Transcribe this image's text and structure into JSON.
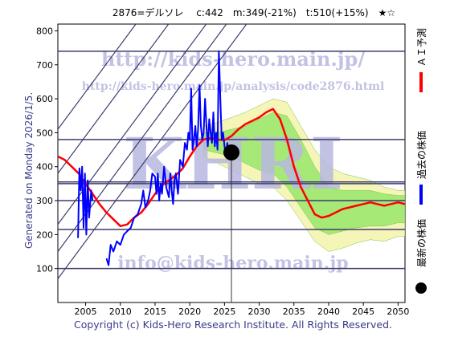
{
  "chart_data": {
    "type": "line",
    "title": "2876=デルソレ　 c:442　m:349(-21%)　t:510(+15%)　★☆",
    "generated_note": "Generated on Monday 2026/1/5.",
    "copyright": "Copyright (c) Kids-Hero Research Institute. All Rights Reserved.",
    "watermarks": [
      "http://kids-hero.main.jp/",
      "http://kids-hero.main.jp/analysis/code2876.html",
      "info@kids-hero.main.jp",
      "KHRI"
    ],
    "legend": [
      {
        "label": "ＡＩ予測",
        "color": "#ff0000"
      },
      {
        "label": "過去の株価",
        "color": "#0000ff"
      },
      {
        "label": "最新の株価",
        "color": "#000000"
      }
    ],
    "xlim": [
      2001.0,
      2051.0
    ],
    "ylim": [
      0,
      820
    ],
    "x_ticks": [
      2005,
      2010,
      2015,
      2020,
      2025,
      2030,
      2035,
      2040,
      2045,
      2050
    ],
    "y_ticks": [
      100,
      200,
      300,
      400,
      500,
      600,
      700,
      800
    ],
    "horizontal_lines": [
      100,
      215,
      300,
      350,
      355,
      480,
      740
    ],
    "diagonal_lines": [
      {
        "x1": 2001,
        "y1": 70,
        "x2": 2051,
        "y2": 1450
      },
      {
        "x1": 2001,
        "y1": 150,
        "x2": 2051,
        "y2": 1530
      },
      {
        "x1": 2001,
        "y1": 230,
        "x2": 2051,
        "y2": 1610
      },
      {
        "x1": 2001,
        "y1": 380,
        "x2": 2051,
        "y2": 1760
      },
      {
        "x1": 2001,
        "y1": 510,
        "x2": 2051,
        "y2": 1890
      }
    ],
    "latest_point": {
      "x": 2026.0,
      "y": 442
    },
    "series": [
      {
        "name": "ＡＩ予測",
        "color": "#ff0000",
        "x": [
          2001.0,
          2002.0,
          2003.0,
          2004.0,
          2005.0,
          2006.0,
          2007.0,
          2008.0,
          2009.0,
          2010.0,
          2011.0,
          2012.0,
          2013.0,
          2014.0,
          2015.0,
          2016.0,
          2017.0,
          2018.0,
          2019.0,
          2020.0,
          2021.0,
          2022.0,
          2023.0,
          2024.0,
          2025.0,
          2026.0,
          2027.0,
          2028.0,
          2029.0,
          2030.0,
          2031.0,
          2032.0,
          2033.0,
          2034.0,
          2035.0,
          2036.0,
          2037.0,
          2038.0,
          2039.0,
          2040.0,
          2041.0,
          2042.0,
          2043.0,
          2044.0,
          2045.0,
          2046.0,
          2047.0,
          2048.0,
          2049.0,
          2050.0,
          2051.0
        ],
        "values": [
          430,
          420,
          400,
          380,
          350,
          320,
          290,
          265,
          245,
          225,
          230,
          250,
          265,
          290,
          320,
          345,
          360,
          375,
          395,
          430,
          460,
          480,
          485,
          480,
          478,
          490,
          510,
          525,
          535,
          545,
          560,
          570,
          540,
          480,
          400,
          340,
          300,
          260,
          250,
          255,
          265,
          275,
          280,
          285,
          290,
          295,
          290,
          285,
          290,
          295,
          290
        ]
      },
      {
        "name": "過去の株価",
        "color": "#0000ff",
        "x": [
          2003.9,
          2004.1,
          2004.3,
          2004.5,
          2004.7,
          2004.9,
          2005.1,
          2005.3,
          2005.5,
          2005.8,
          2006.0,
          2007.0,
          2008.0,
          2008.3,
          2008.6,
          2009.0,
          2009.5,
          2010.0,
          2010.5,
          2011.0,
          2011.5,
          2012.0,
          2012.5,
          2013.0,
          2013.3,
          2013.6,
          2014.0,
          2014.3,
          2014.6,
          2015.0,
          2015.2,
          2015.4,
          2015.6,
          2015.8,
          2016.0,
          2016.3,
          2016.6,
          2017.0,
          2017.2,
          2017.4,
          2017.6,
          2017.8,
          2018.0,
          2018.3,
          2018.6,
          2019.0,
          2019.3,
          2019.6,
          2019.8,
          2020.0,
          2020.2,
          2020.4,
          2020.6,
          2020.8,
          2021.0,
          2021.2,
          2021.4,
          2021.6,
          2021.8,
          2022.0,
          2022.2,
          2022.4,
          2022.6,
          2022.8,
          2023.0,
          2023.2,
          2023.4,
          2023.6,
          2023.8,
          2024.0,
          2024.2,
          2024.4,
          2024.6,
          2024.8,
          2025.0,
          2025.2,
          2025.4,
          2025.6,
          2025.8,
          2026.0
        ],
        "values": [
          190,
          395,
          330,
          400,
          220,
          380,
          200,
          360,
          250,
          330,
          300,
          null,
          130,
          110,
          170,
          150,
          180,
          170,
          200,
          210,
          220,
          250,
          260,
          290,
          330,
          280,
          300,
          330,
          380,
          370,
          320,
          380,
          300,
          350,
          320,
          400,
          340,
          310,
          380,
          330,
          290,
          360,
          380,
          320,
          420,
          400,
          470,
          450,
          500,
          480,
          630,
          450,
          480,
          520,
          460,
          510,
          640,
          520,
          480,
          500,
          600,
          520,
          460,
          540,
          500,
          470,
          560,
          460,
          500,
          450,
          740,
          600,
          480,
          500,
          460,
          430,
          470,
          440,
          440,
          442
        ]
      }
    ],
    "bands": [
      {
        "name": "outer",
        "color": "#f5f5b0",
        "x": [
          2022.0,
          2024.0,
          2026.0,
          2028.0,
          2030.0,
          2032.0,
          2034.0,
          2036.0,
          2038.0,
          2040.0,
          2042.0,
          2044.0,
          2046.0,
          2048.0,
          2050.0,
          2051.0
        ],
        "lower": [
          430,
          410,
          390,
          370,
          350,
          340,
          300,
          240,
          180,
          150,
          160,
          175,
          185,
          180,
          195,
          195
        ],
        "upper": [
          520,
          530,
          545,
          560,
          580,
          600,
          590,
          520,
          450,
          400,
          380,
          370,
          360,
          340,
          330,
          330
        ]
      },
      {
        "name": "inner",
        "color": "#9ee86f",
        "x": [
          2022.0,
          2024.0,
          2026.0,
          2028.0,
          2030.0,
          2032.0,
          2034.0,
          2036.0,
          2038.0,
          2040.0,
          2042.0,
          2044.0,
          2046.0,
          2048.0,
          2050.0,
          2051.0
        ],
        "lower": [
          450,
          440,
          430,
          410,
          390,
          380,
          340,
          280,
          220,
          200,
          210,
          220,
          225,
          225,
          235,
          235
        ],
        "upper": [
          500,
          500,
          510,
          520,
          540,
          560,
          550,
          480,
          400,
          340,
          330,
          330,
          330,
          320,
          315,
          315
        ]
      }
    ]
  }
}
